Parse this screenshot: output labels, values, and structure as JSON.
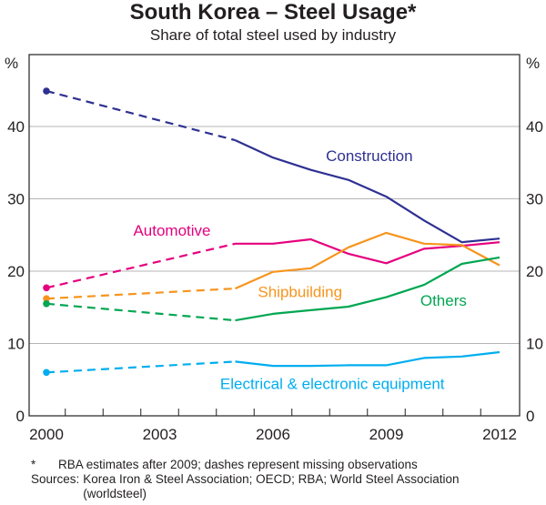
{
  "chart_data": {
    "type": "line",
    "title": "South Korea – Steel Usage*",
    "subtitle": "Share of total steel used by industry",
    "ylabel_left": "%",
    "ylabel_right": "%",
    "xlabel": "",
    "xlim": [
      2000,
      2012
    ],
    "ylim": [
      0,
      48
    ],
    "yticks": [
      0,
      10,
      20,
      30,
      40
    ],
    "ytick_labels": [
      "0",
      "10",
      "20",
      "30",
      "40"
    ],
    "xticks": [
      2000,
      2003,
      2006,
      2009,
      2012
    ],
    "xtick_labels": [
      "2000",
      "2003",
      "2006",
      "2009",
      "2012"
    ],
    "grid": true,
    "legend": "inline labels",
    "series": [
      {
        "name": "Construction",
        "color": "#2e3192",
        "points": [
          [
            2000,
            44.9
          ],
          [
            2005,
            38.1
          ],
          [
            2006,
            35.7
          ],
          [
            2007,
            34.0
          ],
          [
            2008,
            32.6
          ],
          [
            2009,
            30.3
          ],
          [
            2010,
            27.0
          ],
          [
            2011,
            24.0
          ],
          [
            2012,
            24.5
          ]
        ],
        "dashed_until": 2005,
        "label_pos": [
          2007.4,
          35.2
        ]
      },
      {
        "name": "Automotive",
        "color": "#e5007e",
        "points": [
          [
            2000,
            17.7
          ],
          [
            2005,
            23.8
          ],
          [
            2006,
            23.8
          ],
          [
            2007,
            24.4
          ],
          [
            2008,
            22.4
          ],
          [
            2009,
            21.1
          ],
          [
            2010,
            23.1
          ],
          [
            2011,
            23.5
          ],
          [
            2012,
            24.0
          ]
        ],
        "dashed_until": 2005,
        "label_pos": [
          2002.3,
          24.9
        ]
      },
      {
        "name": "Shipbuilding",
        "color": "#f7941d",
        "points": [
          [
            2000,
            16.2
          ],
          [
            2005,
            17.6
          ],
          [
            2006,
            19.9
          ],
          [
            2007,
            20.4
          ],
          [
            2008,
            23.3
          ],
          [
            2009,
            25.3
          ],
          [
            2010,
            23.8
          ],
          [
            2011,
            23.6
          ],
          [
            2012,
            20.8
          ]
        ],
        "dashed_until": 2005,
        "label_pos": [
          2005.6,
          16.4
        ]
      },
      {
        "name": "Others",
        "color": "#00a651",
        "points": [
          [
            2000,
            15.5
          ],
          [
            2005,
            13.2
          ],
          [
            2006,
            14.1
          ],
          [
            2007,
            14.6
          ],
          [
            2008,
            15.1
          ],
          [
            2009,
            16.4
          ],
          [
            2010,
            18.1
          ],
          [
            2011,
            21.0
          ],
          [
            2012,
            21.9
          ]
        ],
        "dashed_until": 2005,
        "label_pos": [
          2009.9,
          15.2
        ]
      },
      {
        "name": "Electrical & electronic equipment",
        "color": "#00aeef",
        "points": [
          [
            2000,
            6.0
          ],
          [
            2005,
            7.5
          ],
          [
            2006,
            6.9
          ],
          [
            2007,
            6.9
          ],
          [
            2008,
            7.0
          ],
          [
            2009,
            7.0
          ],
          [
            2010,
            8.0
          ],
          [
            2011,
            8.2
          ],
          [
            2012,
            8.8
          ]
        ],
        "dashed_until": 2005,
        "label_pos": [
          2004.6,
          3.7
        ]
      }
    ]
  },
  "notes": {
    "asterisk_key": "*",
    "asterisk_text": "RBA estimates after 2009; dashes represent missing observations",
    "sources_key": "Sources:",
    "sources_text": "Korea Iron & Steel Association; OECD; RBA; World Steel Association (worldsteel)"
  }
}
